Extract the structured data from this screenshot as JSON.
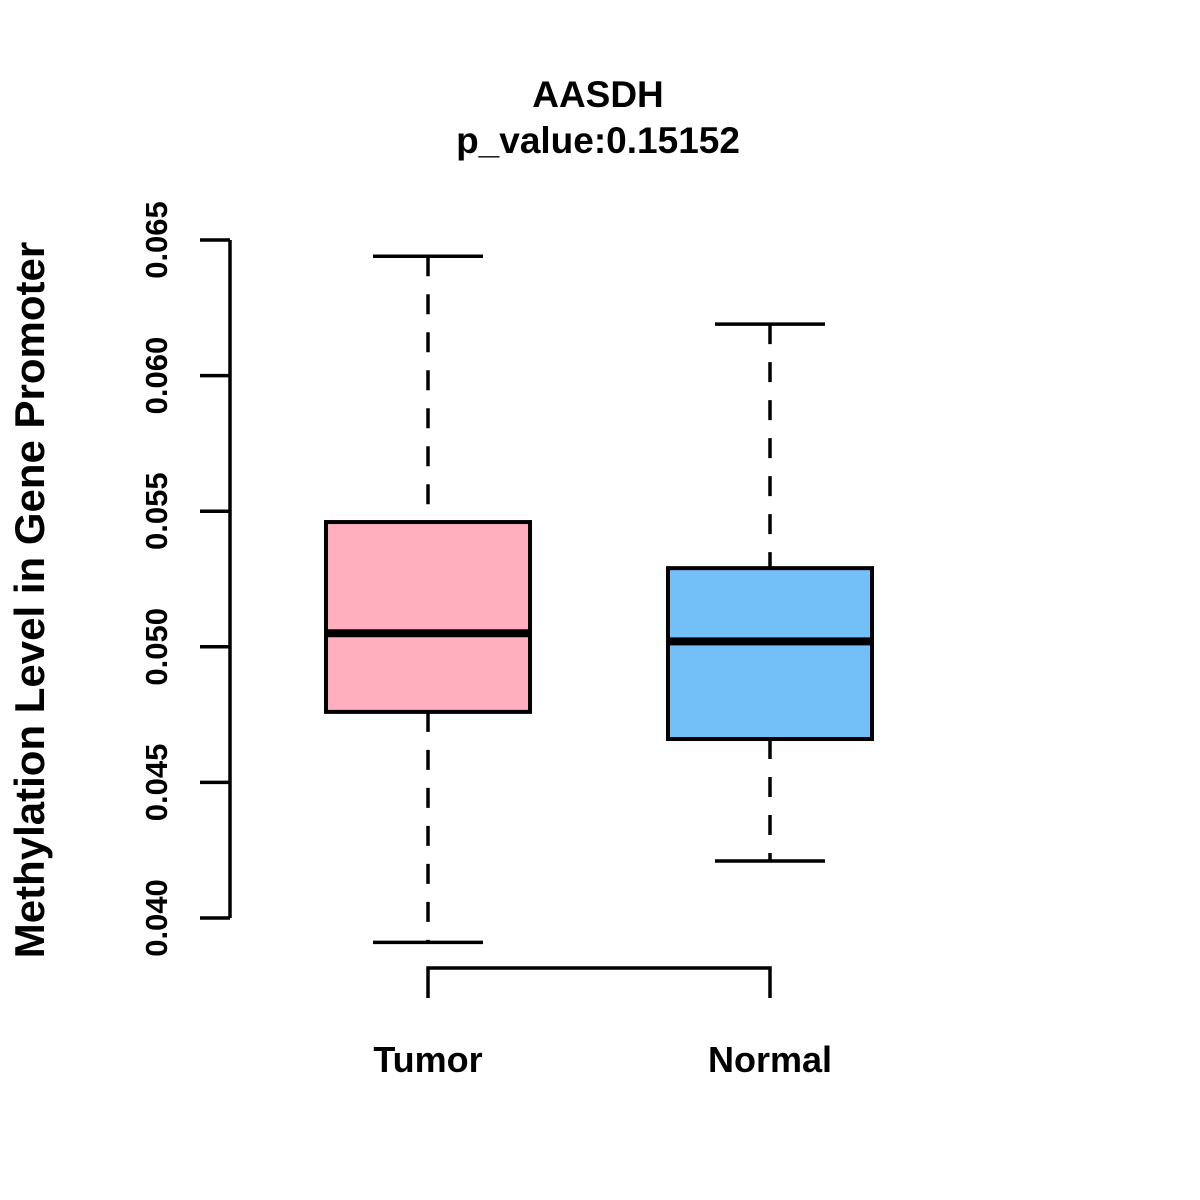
{
  "title": "AASDH",
  "subtitle": "p_value:0.15152",
  "chart_data": {
    "type": "boxplot",
    "title": "AASDH",
    "subtitle": "p_value:0.15152",
    "ylabel": "Methylation Level in Gene Promoter",
    "xlabel": "",
    "categories": [
      "Tumor",
      "Normal"
    ],
    "series": [
      {
        "name": "Tumor",
        "color": "#FFAFBE",
        "min": 0.0391,
        "q1": 0.0476,
        "median": 0.0505,
        "q3": 0.0546,
        "max": 0.0644
      },
      {
        "name": "Normal",
        "color": "#73BFF7",
        "min": 0.0421,
        "q1": 0.0466,
        "median": 0.0502,
        "q3": 0.0529,
        "max": 0.0619
      }
    ],
    "ylim": [
      0.04,
      0.065
    ],
    "ytick_values": [
      0.04,
      0.045,
      0.05,
      0.055,
      0.06,
      0.065
    ],
    "ytick_labels": [
      "0.040",
      "0.045",
      "0.050",
      "0.055",
      "0.060",
      "0.065"
    ],
    "grid": false,
    "legend": false,
    "stroke_color": "#000000",
    "background_color": "#FFFFFF",
    "whisker_style": "dashed"
  }
}
